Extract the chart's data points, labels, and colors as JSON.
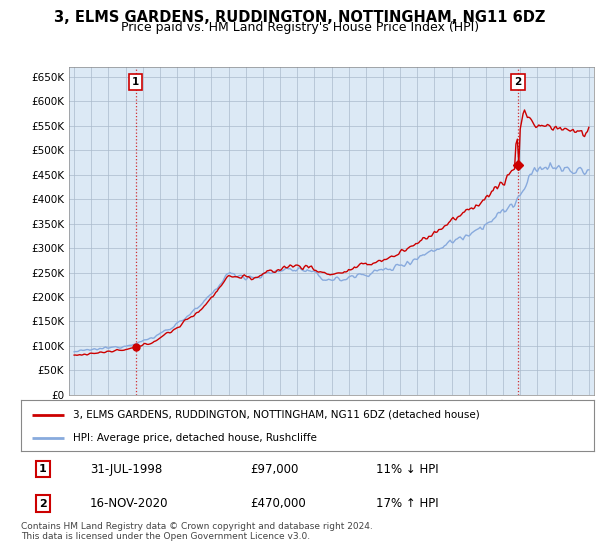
{
  "title": "3, ELMS GARDENS, RUDDINGTON, NOTTINGHAM, NG11 6DZ",
  "subtitle": "Price paid vs. HM Land Registry's House Price Index (HPI)",
  "ylim": [
    0,
    670000
  ],
  "yticks": [
    0,
    50000,
    100000,
    150000,
    200000,
    250000,
    300000,
    350000,
    400000,
    450000,
    500000,
    550000,
    600000,
    650000
  ],
  "xlim_start": 1994.7,
  "xlim_end": 2025.3,
  "sale1_date": 1998.58,
  "sale1_price": 97000,
  "sale2_date": 2020.88,
  "sale2_price": 470000,
  "sale_color": "#cc0000",
  "hpi_color": "#88aadd",
  "legend_line1": "3, ELMS GARDENS, RUDDINGTON, NOTTINGHAM, NG11 6DZ (detached house)",
  "legend_line2": "HPI: Average price, detached house, Rushcliffe",
  "table_row1": [
    "1",
    "31-JUL-1998",
    "£97,000",
    "11% ↓ HPI"
  ],
  "table_row2": [
    "2",
    "16-NOV-2020",
    "£470,000",
    "17% ↑ HPI"
  ],
  "footer": "Contains HM Land Registry data © Crown copyright and database right 2024.\nThis data is licensed under the Open Government Licence v3.0.",
  "bg_color": "#ffffff",
  "plot_bg": "#dce9f5",
  "grid_color": "#aabbcc",
  "title_fontsize": 10.5,
  "subtitle_fontsize": 9
}
